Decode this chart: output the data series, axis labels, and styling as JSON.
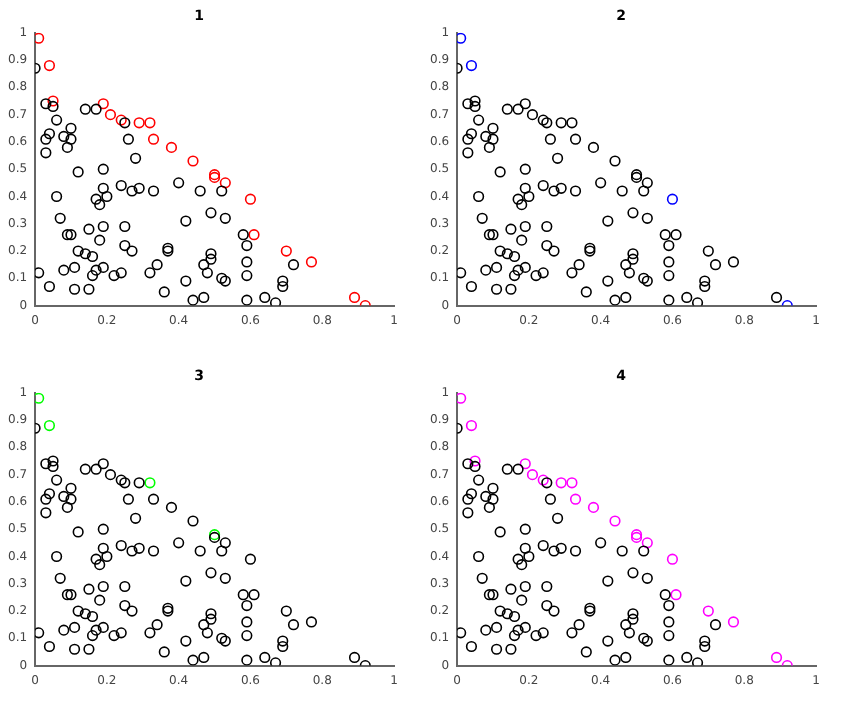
{
  "chart_data": [
    {
      "type": "scatter",
      "title": "1",
      "marker": "circle",
      "grid": false,
      "xlim": [
        0,
        1
      ],
      "ylim": [
        0,
        1
      ],
      "xticks": [
        0,
        0.2,
        0.4,
        0.6,
        0.8,
        1
      ],
      "yticks": [
        0,
        0.1,
        0.2,
        0.3,
        0.4,
        0.5,
        0.6,
        0.7,
        0.8,
        0.9,
        1
      ],
      "series": [
        {
          "color": "#000000",
          "x": [
            0,
            0.03,
            0.05,
            0.06,
            0.04,
            0.03,
            0.03,
            0.08,
            0.09,
            0.1,
            0.1,
            0.14,
            0.17,
            0.12,
            0.19,
            0.25,
            0.26,
            0.28,
            0.06,
            0.19,
            0.2,
            0.17,
            0.18,
            0.24,
            0.27,
            0.29,
            0.33,
            0.4,
            0.46,
            0.52,
            0.07,
            0.09,
            0.1,
            0.15,
            0.19,
            0.25,
            0.42,
            0.49,
            0.53,
            0.58,
            0.59,
            0.12,
            0.14,
            0.16,
            0.18,
            0.25,
            0.27,
            0.37,
            0.37,
            0.49,
            0.49,
            0.47,
            0.48,
            0.59,
            0.59,
            0.69,
            0.69,
            0.72,
            0.01,
            0.08,
            0.11,
            0.16,
            0.17,
            0.19,
            0.22,
            0.24,
            0.32,
            0.34,
            0.42,
            0.52,
            0.53,
            0.04,
            0.11,
            0.15,
            0.36,
            0.44,
            0.47,
            0.59,
            0.64,
            0.67
          ],
          "values": [
            0.87,
            0.74,
            0.73,
            0.68,
            0.63,
            0.61,
            0.56,
            0.62,
            0.58,
            0.65,
            0.61,
            0.72,
            0.72,
            0.49,
            0.5,
            0.67,
            0.61,
            0.54,
            0.4,
            0.43,
            0.4,
            0.39,
            0.37,
            0.44,
            0.42,
            0.43,
            0.42,
            0.45,
            0.42,
            0.42,
            0.32,
            0.26,
            0.26,
            0.28,
            0.29,
            0.29,
            0.31,
            0.34,
            0.32,
            0.26,
            0.22,
            0.2,
            0.19,
            0.18,
            0.24,
            0.22,
            0.2,
            0.21,
            0.2,
            0.19,
            0.17,
            0.15,
            0.12,
            0.16,
            0.11,
            0.09,
            0.07,
            0.15,
            0.12,
            0.13,
            0.14,
            0.11,
            0.13,
            0.14,
            0.11,
            0.12,
            0.12,
            0.15,
            0.09,
            0.1,
            0.09,
            0.07,
            0.06,
            0.06,
            0.05,
            0.02,
            0.03,
            0.02,
            0.03,
            0.01
          ]
        },
        {
          "color": "#ff0000",
          "x": [
            0.01,
            0.04,
            0.05,
            0.19,
            0.21,
            0.24,
            0.29,
            0.32,
            0.33,
            0.38,
            0.44,
            0.5,
            0.5,
            0.53,
            0.6,
            0.61,
            0.7,
            0.77,
            0.89,
            0.92
          ],
          "values": [
            0.98,
            0.88,
            0.75,
            0.74,
            0.7,
            0.68,
            0.67,
            0.67,
            0.61,
            0.58,
            0.53,
            0.48,
            0.47,
            0.45,
            0.39,
            0.26,
            0.2,
            0.16,
            0.03,
            0
          ]
        }
      ]
    },
    {
      "type": "scatter",
      "title": "2",
      "marker": "circle",
      "grid": false,
      "xlim": [
        0,
        1
      ],
      "ylim": [
        0,
        1
      ],
      "xticks": [
        0,
        0.2,
        0.4,
        0.6,
        0.8,
        1
      ],
      "yticks": [
        0,
        0.1,
        0.2,
        0.3,
        0.4,
        0.5,
        0.6,
        0.7,
        0.8,
        0.9,
        1
      ],
      "series": [
        {
          "color": "#000000",
          "x": [
            0,
            0.03,
            0.05,
            0.06,
            0.04,
            0.03,
            0.03,
            0.08,
            0.09,
            0.1,
            0.1,
            0.14,
            0.17,
            0.12,
            0.19,
            0.25,
            0.26,
            0.28,
            0.06,
            0.19,
            0.2,
            0.17,
            0.18,
            0.24,
            0.27,
            0.29,
            0.33,
            0.4,
            0.46,
            0.52,
            0.07,
            0.09,
            0.1,
            0.15,
            0.19,
            0.25,
            0.42,
            0.49,
            0.53,
            0.58,
            0.59,
            0.12,
            0.14,
            0.16,
            0.18,
            0.25,
            0.27,
            0.37,
            0.37,
            0.49,
            0.49,
            0.47,
            0.48,
            0.59,
            0.59,
            0.69,
            0.69,
            0.72,
            0.01,
            0.08,
            0.11,
            0.16,
            0.17,
            0.19,
            0.22,
            0.24,
            0.32,
            0.34,
            0.42,
            0.52,
            0.53,
            0.04,
            0.11,
            0.15,
            0.36,
            0.44,
            0.47,
            0.59,
            0.64,
            0.67,
            0.05,
            0.19,
            0.21,
            0.24,
            0.29,
            0.32,
            0.33,
            0.38,
            0.44,
            0.5,
            0.5,
            0.53,
            0.61,
            0.7,
            0.77,
            0.89
          ],
          "values": [
            0.87,
            0.74,
            0.73,
            0.68,
            0.63,
            0.61,
            0.56,
            0.62,
            0.58,
            0.65,
            0.61,
            0.72,
            0.72,
            0.49,
            0.5,
            0.67,
            0.61,
            0.54,
            0.4,
            0.43,
            0.4,
            0.39,
            0.37,
            0.44,
            0.42,
            0.43,
            0.42,
            0.45,
            0.42,
            0.42,
            0.32,
            0.26,
            0.26,
            0.28,
            0.29,
            0.29,
            0.31,
            0.34,
            0.32,
            0.26,
            0.22,
            0.2,
            0.19,
            0.18,
            0.24,
            0.22,
            0.2,
            0.21,
            0.2,
            0.19,
            0.17,
            0.15,
            0.12,
            0.16,
            0.11,
            0.09,
            0.07,
            0.15,
            0.12,
            0.13,
            0.14,
            0.11,
            0.13,
            0.14,
            0.11,
            0.12,
            0.12,
            0.15,
            0.09,
            0.1,
            0.09,
            0.07,
            0.06,
            0.06,
            0.05,
            0.02,
            0.03,
            0.02,
            0.03,
            0.01,
            0.75,
            0.74,
            0.7,
            0.68,
            0.67,
            0.67,
            0.61,
            0.58,
            0.53,
            0.48,
            0.47,
            0.45,
            0.26,
            0.2,
            0.16,
            0.03
          ]
        },
        {
          "color": "#0000ff",
          "x": [
            0.01,
            0.04,
            0.6,
            0.92
          ],
          "values": [
            0.98,
            0.88,
            0.39,
            0
          ]
        }
      ]
    },
    {
      "type": "scatter",
      "title": "3",
      "marker": "circle",
      "grid": false,
      "xlim": [
        0,
        1
      ],
      "ylim": [
        0,
        1
      ],
      "xticks": [
        0,
        0.2,
        0.4,
        0.6,
        0.8,
        1
      ],
      "yticks": [
        0,
        0.1,
        0.2,
        0.3,
        0.4,
        0.5,
        0.6,
        0.7,
        0.8,
        0.9,
        1
      ],
      "series": [
        {
          "color": "#000000",
          "x": [
            0,
            0.03,
            0.05,
            0.06,
            0.04,
            0.03,
            0.03,
            0.08,
            0.09,
            0.1,
            0.1,
            0.14,
            0.17,
            0.12,
            0.19,
            0.25,
            0.26,
            0.28,
            0.06,
            0.19,
            0.2,
            0.17,
            0.18,
            0.24,
            0.27,
            0.29,
            0.33,
            0.4,
            0.46,
            0.52,
            0.07,
            0.09,
            0.1,
            0.15,
            0.19,
            0.25,
            0.42,
            0.49,
            0.53,
            0.58,
            0.59,
            0.12,
            0.14,
            0.16,
            0.18,
            0.25,
            0.27,
            0.37,
            0.37,
            0.49,
            0.49,
            0.47,
            0.48,
            0.59,
            0.59,
            0.69,
            0.69,
            0.72,
            0.01,
            0.08,
            0.11,
            0.16,
            0.17,
            0.19,
            0.22,
            0.24,
            0.32,
            0.34,
            0.42,
            0.52,
            0.53,
            0.04,
            0.11,
            0.15,
            0.36,
            0.44,
            0.47,
            0.59,
            0.64,
            0.67,
            0.05,
            0.19,
            0.21,
            0.24,
            0.29,
            0.33,
            0.38,
            0.44,
            0.5,
            0.53,
            0.6,
            0.61,
            0.7,
            0.77,
            0.89,
            0.92
          ],
          "values": [
            0.87,
            0.74,
            0.73,
            0.68,
            0.63,
            0.61,
            0.56,
            0.62,
            0.58,
            0.65,
            0.61,
            0.72,
            0.72,
            0.49,
            0.5,
            0.67,
            0.61,
            0.54,
            0.4,
            0.43,
            0.4,
            0.39,
            0.37,
            0.44,
            0.42,
            0.43,
            0.42,
            0.45,
            0.42,
            0.42,
            0.32,
            0.26,
            0.26,
            0.28,
            0.29,
            0.29,
            0.31,
            0.34,
            0.32,
            0.26,
            0.22,
            0.2,
            0.19,
            0.18,
            0.24,
            0.22,
            0.2,
            0.21,
            0.2,
            0.19,
            0.17,
            0.15,
            0.12,
            0.16,
            0.11,
            0.09,
            0.07,
            0.15,
            0.12,
            0.13,
            0.14,
            0.11,
            0.13,
            0.14,
            0.11,
            0.12,
            0.12,
            0.15,
            0.09,
            0.1,
            0.09,
            0.07,
            0.06,
            0.06,
            0.05,
            0.02,
            0.03,
            0.02,
            0.03,
            0.01,
            0.75,
            0.74,
            0.7,
            0.68,
            0.67,
            0.61,
            0.58,
            0.53,
            0.47,
            0.45,
            0.39,
            0.26,
            0.2,
            0.16,
            0.03,
            0
          ]
        },
        {
          "color": "#00ff00",
          "x": [
            0.01,
            0.04,
            0.32,
            0.5
          ],
          "values": [
            0.98,
            0.88,
            0.67,
            0.48
          ]
        }
      ]
    },
    {
      "type": "scatter",
      "title": "4",
      "marker": "circle",
      "grid": false,
      "xlim": [
        0,
        1
      ],
      "ylim": [
        0,
        1
      ],
      "xticks": [
        0,
        0.2,
        0.4,
        0.6,
        0.8,
        1
      ],
      "yticks": [
        0,
        0.1,
        0.2,
        0.3,
        0.4,
        0.5,
        0.6,
        0.7,
        0.8,
        0.9,
        1
      ],
      "series": [
        {
          "color": "#000000",
          "x": [
            0,
            0.03,
            0.05,
            0.06,
            0.04,
            0.03,
            0.03,
            0.08,
            0.09,
            0.1,
            0.1,
            0.14,
            0.17,
            0.12,
            0.19,
            0.25,
            0.26,
            0.28,
            0.06,
            0.19,
            0.2,
            0.17,
            0.18,
            0.24,
            0.27,
            0.29,
            0.33,
            0.4,
            0.46,
            0.52,
            0.07,
            0.09,
            0.1,
            0.15,
            0.19,
            0.25,
            0.42,
            0.49,
            0.53,
            0.58,
            0.59,
            0.12,
            0.14,
            0.16,
            0.18,
            0.25,
            0.27,
            0.37,
            0.37,
            0.49,
            0.49,
            0.47,
            0.48,
            0.59,
            0.59,
            0.69,
            0.69,
            0.72,
            0.01,
            0.08,
            0.11,
            0.16,
            0.17,
            0.19,
            0.22,
            0.24,
            0.32,
            0.34,
            0.42,
            0.52,
            0.53,
            0.04,
            0.11,
            0.15,
            0.36,
            0.44,
            0.47,
            0.59,
            0.64,
            0.67
          ],
          "values": [
            0.87,
            0.74,
            0.73,
            0.68,
            0.63,
            0.61,
            0.56,
            0.62,
            0.58,
            0.65,
            0.61,
            0.72,
            0.72,
            0.49,
            0.5,
            0.67,
            0.61,
            0.54,
            0.4,
            0.43,
            0.4,
            0.39,
            0.37,
            0.44,
            0.42,
            0.43,
            0.42,
            0.45,
            0.42,
            0.42,
            0.32,
            0.26,
            0.26,
            0.28,
            0.29,
            0.29,
            0.31,
            0.34,
            0.32,
            0.26,
            0.22,
            0.2,
            0.19,
            0.18,
            0.24,
            0.22,
            0.2,
            0.21,
            0.2,
            0.19,
            0.17,
            0.15,
            0.12,
            0.16,
            0.11,
            0.09,
            0.07,
            0.15,
            0.12,
            0.13,
            0.14,
            0.11,
            0.13,
            0.14,
            0.11,
            0.12,
            0.12,
            0.15,
            0.09,
            0.1,
            0.09,
            0.07,
            0.06,
            0.06,
            0.05,
            0.02,
            0.03,
            0.02,
            0.03,
            0.01
          ]
        },
        {
          "color": "#ff00ff",
          "x": [
            0.01,
            0.04,
            0.05,
            0.19,
            0.21,
            0.24,
            0.29,
            0.32,
            0.33,
            0.38,
            0.44,
            0.5,
            0.5,
            0.53,
            0.6,
            0.61,
            0.7,
            0.77,
            0.89,
            0.92
          ],
          "values": [
            0.98,
            0.88,
            0.75,
            0.74,
            0.7,
            0.68,
            0.67,
            0.67,
            0.61,
            0.58,
            0.53,
            0.48,
            0.47,
            0.45,
            0.39,
            0.26,
            0.2,
            0.16,
            0.03,
            0
          ]
        }
      ]
    }
  ]
}
